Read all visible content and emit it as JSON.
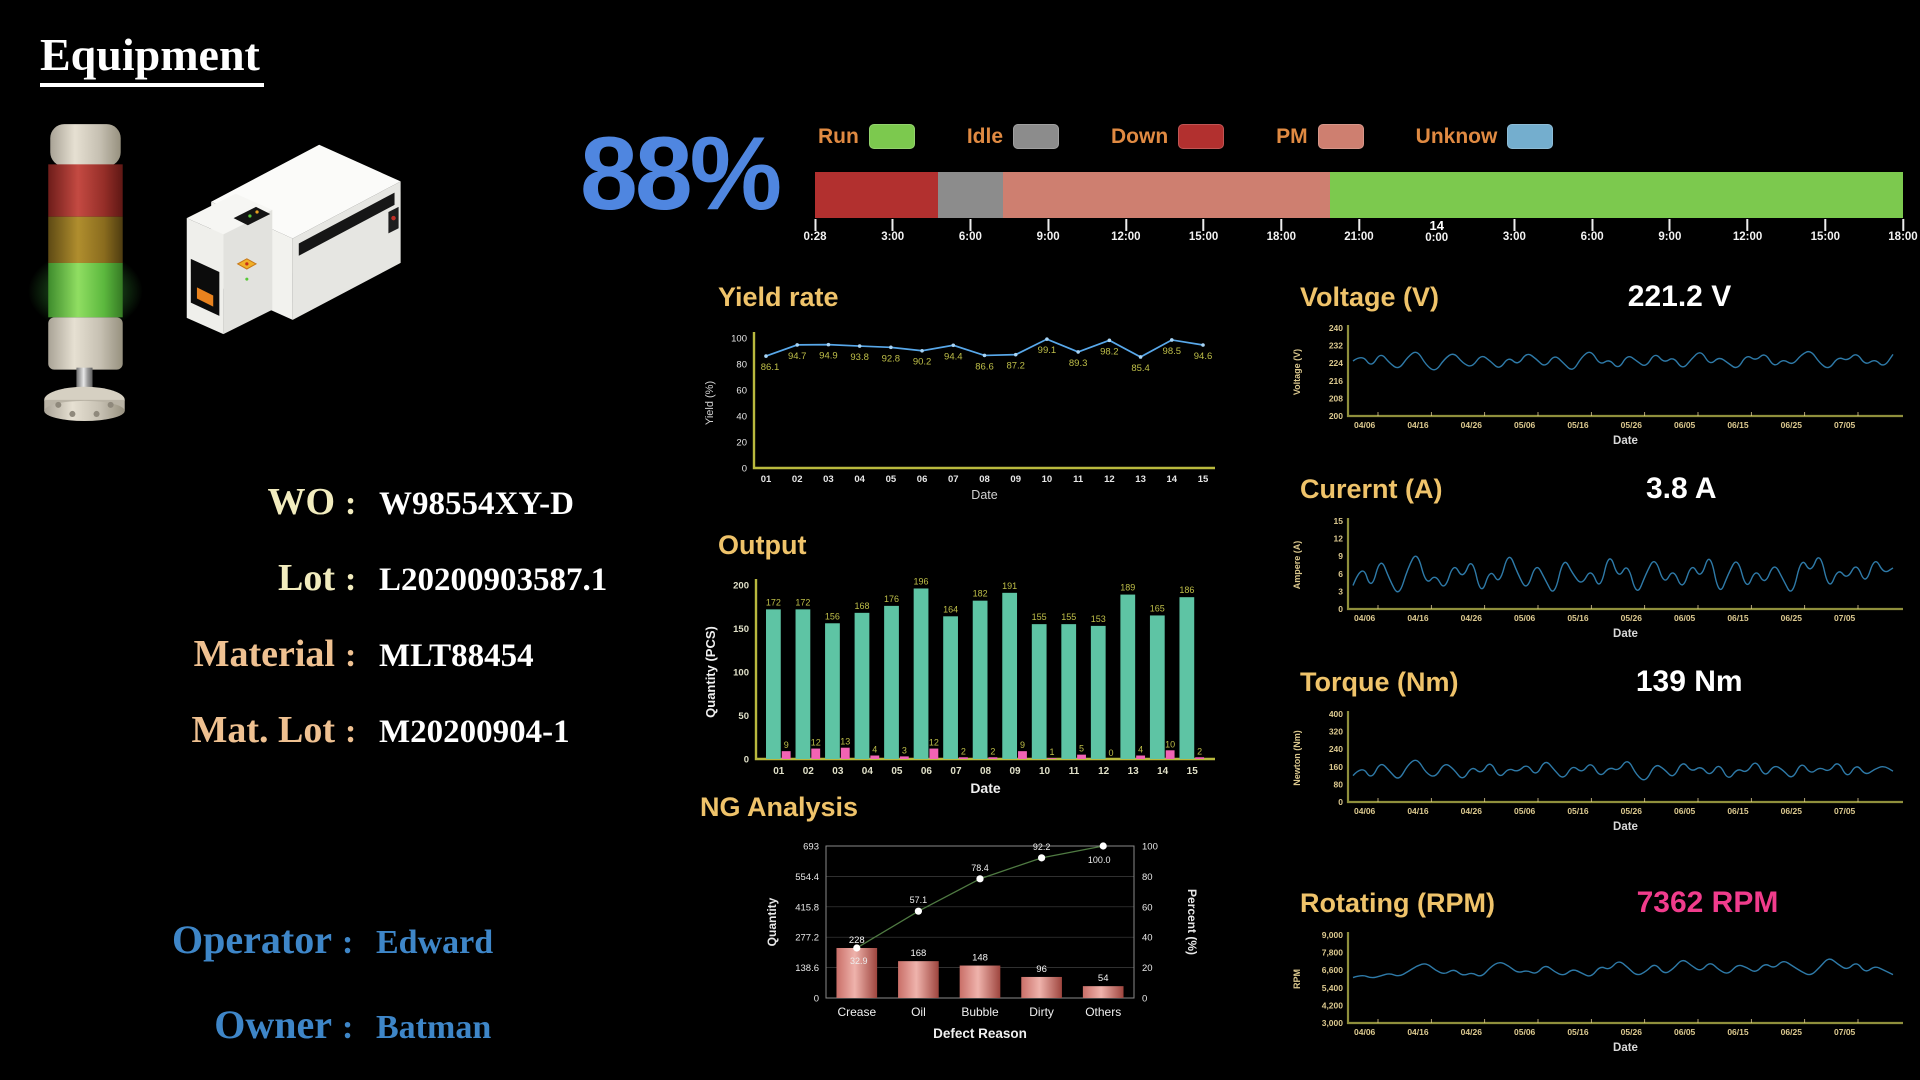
{
  "header": {
    "title": "Equipment"
  },
  "equipment": {
    "separator": ":",
    "status_light": "green",
    "info_rows": [
      {
        "label": "WO",
        "value": "W98554XY-D",
        "label_color": "#F2ECBE"
      },
      {
        "label": "Lot",
        "value": "L20200903587.1",
        "label_color": "#F2ECBE"
      },
      {
        "label": "Material",
        "value": "MLT88454",
        "label_color": "#EFC191"
      },
      {
        "label": "Mat. Lot",
        "value": "M20200904-1",
        "label_color": "#EFC191"
      }
    ],
    "people_rows": [
      {
        "label": "Operator",
        "value": "Edward",
        "label_color": "#3E86C8"
      },
      {
        "label": "Owner",
        "value": "Batman",
        "label_color": "#3E86C8"
      }
    ]
  },
  "oee": {
    "percent_label": "88%",
    "legend": [
      {
        "label": "Run",
        "color": "#7CC94E"
      },
      {
        "label": "Idle",
        "color": "#8C8C8C"
      },
      {
        "label": "Down",
        "color": "#B2302F"
      },
      {
        "label": "PM",
        "color": "#CE7F70"
      },
      {
        "label": "Unknow",
        "color": "#74AECE"
      }
    ],
    "timeline_segments": [
      {
        "status": "Down",
        "pct": 11.3
      },
      {
        "status": "Idle",
        "pct": 6.0
      },
      {
        "status": "PM",
        "pct": 30.0
      },
      {
        "status": "Run",
        "pct": 52.7
      }
    ],
    "time_ticks": [
      "0:28",
      "3:00",
      "6:00",
      "9:00",
      "12:00",
      "15:00",
      "18:00",
      "21:00",
      "0:00",
      "3:00",
      "6:00",
      "9:00",
      "12:00",
      "15:00",
      "18:00"
    ],
    "day_marker": {
      "label": "14",
      "tick_index": 8
    }
  },
  "theme": {
    "accent_blue": "#4F86E0",
    "gold_title": "#EFC36A",
    "legend_label_orange": "#E08A42",
    "axis_olive": "#B9B93E",
    "data_label_yellow": "#BFBF49",
    "line_blue": "#58A8EA",
    "mini_line_blue": "#2E7AA8",
    "bar_teal": "#5EC4A4",
    "bar_pink": "#F263B4",
    "rpm_pink": "#F03C8C"
  },
  "chart_data": [
    {
      "id": "yield",
      "type": "line",
      "title": "Yield rate",
      "xlabel": "Date",
      "ylabel": "Yield (%)",
      "ylim": [
        0,
        100
      ],
      "yticks": [
        0,
        20,
        40,
        60,
        80,
        100
      ],
      "categories": [
        "01",
        "02",
        "03",
        "04",
        "05",
        "06",
        "07",
        "08",
        "09",
        "10",
        "11",
        "12",
        "13",
        "14",
        "15"
      ],
      "values": [
        86.1,
        94.7,
        94.9,
        93.8,
        92.8,
        90.2,
        94.4,
        86.6,
        87.2,
        99.1,
        89.3,
        98.2,
        85.4,
        98.5,
        94.6
      ]
    },
    {
      "id": "output",
      "type": "bar",
      "title": "Output",
      "xlabel": "Date",
      "ylabel": "Quantity (PCS)",
      "ylim": [
        0,
        200
      ],
      "yticks": [
        0,
        50,
        100,
        150,
        200
      ],
      "categories": [
        "01",
        "02",
        "03",
        "04",
        "05",
        "06",
        "07",
        "08",
        "09",
        "10",
        "11",
        "12",
        "13",
        "14",
        "15"
      ],
      "series": [
        {
          "name": "Output",
          "color": "#5EC4A4",
          "values": [
            172,
            172,
            156,
            168,
            176,
            196,
            164,
            182,
            191,
            155,
            155,
            153,
            189,
            165,
            186
          ]
        },
        {
          "name": "NG",
          "color": "#F263B4",
          "values": [
            9,
            12,
            13,
            4,
            3,
            12,
            2,
            2,
            9,
            1,
            5,
            0,
            4,
            10,
            2
          ]
        }
      ]
    },
    {
      "id": "ng",
      "type": "pareto",
      "title": "NG Analysis",
      "xlabel": "Defect Reason",
      "ylabel_left": "Quantity",
      "ylabel_right": "Percent (%)",
      "categories": [
        "Crease",
        "Oil",
        "Bubble",
        "Dirty",
        "Others"
      ],
      "bar_values": [
        228,
        168,
        148,
        96,
        54
      ],
      "cum_percent": [
        32.9,
        57.1,
        78.4,
        92.2,
        100.0
      ],
      "ylim_left": [
        0,
        693
      ],
      "yticks_left": [
        0,
        138.6,
        277.2,
        415.8,
        554.4,
        693
      ],
      "ylim_right": [
        0,
        100
      ],
      "yticks_right": [
        0,
        20,
        40,
        60,
        80,
        100
      ]
    },
    {
      "id": "voltage",
      "type": "line",
      "title": "Voltage (V)",
      "current_value": "221.2 V",
      "value_color": "#FFFFFF",
      "xlabel": "Date",
      "ylabel": "Voltage (V)",
      "ylim": [
        200,
        240
      ],
      "yticks": [
        200,
        208,
        216,
        224,
        232,
        240
      ],
      "xticks": [
        "04/06",
        "04/16",
        "04/26",
        "05/06",
        "05/16",
        "05/26",
        "06/05",
        "06/15",
        "06/25",
        "07/05"
      ],
      "values": [
        225,
        228,
        222,
        229,
        224,
        221,
        227,
        230,
        223,
        220,
        226,
        229,
        224,
        222,
        228,
        225,
        221,
        227,
        223,
        229,
        226,
        222,
        228,
        224,
        220,
        227,
        230,
        223,
        226,
        221,
        228,
        225,
        222,
        229,
        224,
        227,
        221,
        226,
        230,
        223,
        227,
        224,
        221,
        228,
        225,
        229,
        222,
        226,
        223,
        228,
        230,
        224,
        221,
        227,
        225,
        229,
        223,
        226,
        222,
        228
      ]
    },
    {
      "id": "current",
      "type": "line",
      "title": "Curernt (A)",
      "current_value": "3.8 A",
      "value_color": "#FFFFFF",
      "xlabel": "Date",
      "ylabel": "Ampere (A)",
      "ylim": [
        0,
        15
      ],
      "yticks": [
        0,
        3,
        6,
        9,
        12,
        15
      ],
      "xticks": [
        "04/06",
        "04/16",
        "04/26",
        "05/06",
        "05/16",
        "05/26",
        "06/05",
        "06/15",
        "06/25",
        "07/05"
      ],
      "values": [
        4,
        8,
        3,
        9,
        5,
        2,
        7,
        10,
        4,
        6,
        3,
        8,
        5,
        9,
        2,
        7,
        4,
        10,
        6,
        3,
        8,
        5,
        2,
        9,
        6,
        4,
        7,
        3,
        10,
        5,
        8,
        2,
        6,
        9,
        4,
        7,
        3,
        8,
        5,
        10,
        2,
        6,
        9,
        3,
        7,
        4,
        8,
        5,
        2,
        9,
        6,
        10,
        3,
        7,
        5,
        8,
        4,
        9,
        6,
        7
      ]
    },
    {
      "id": "torque",
      "type": "line",
      "title": "Torque (Nm)",
      "current_value": "139 Nm",
      "value_color": "#FFFFFF",
      "xlabel": "Date",
      "ylabel": "Newton (Nm)",
      "ylim": [
        0,
        400
      ],
      "yticks": [
        0,
        80,
        160,
        240,
        320,
        400
      ],
      "xticks": [
        "04/06",
        "04/16",
        "04/26",
        "05/06",
        "05/16",
        "05/26",
        "06/05",
        "06/15",
        "06/25",
        "07/05"
      ],
      "values": [
        120,
        165,
        100,
        185,
        140,
        95,
        170,
        200,
        130,
        110,
        180,
        150,
        95,
        165,
        125,
        190,
        105,
        155,
        135,
        175,
        115,
        195,
        145,
        100,
        170,
        130,
        185,
        110,
        160,
        140,
        200,
        120,
        90,
        175,
        150,
        105,
        190,
        135,
        165,
        115,
        180,
        95,
        155,
        130,
        195,
        110,
        170,
        145,
        100,
        185,
        125,
        160,
        135,
        190,
        105,
        175,
        120,
        150,
        165,
        140
      ]
    },
    {
      "id": "rpm",
      "type": "line",
      "title": "Rotating (RPM)",
      "current_value": "7362 RPM",
      "value_color": "#F03C8C",
      "xlabel": "Date",
      "ylabel": "RPM",
      "ylim": [
        3000,
        9000
      ],
      "yticks": [
        3000,
        4200,
        5400,
        6600,
        7800,
        9000
      ],
      "ytick_labels": [
        "3,000",
        "4,200",
        "5,400",
        "6,600",
        "7,800",
        "9,000"
      ],
      "xticks": [
        "04/06",
        "04/16",
        "04/26",
        "05/06",
        "05/16",
        "05/26",
        "06/05",
        "06/15",
        "06/25",
        "07/05"
      ],
      "values": [
        6100,
        6300,
        6050,
        6200,
        6400,
        6150,
        6500,
        6900,
        7100,
        6600,
        6300,
        6700,
        6200,
        6450,
        6100,
        6800,
        7200,
        6900,
        6400,
        6600,
        6300,
        7000,
        6500,
        6200,
        6700,
        6400,
        6100,
        6900,
        6600,
        7300,
        6800,
        6200,
        6500,
        7100,
        6300,
        6700,
        7400,
        6900,
        6500,
        7200,
        6600,
        6300,
        7000,
        6800,
        6400,
        7100,
        6700,
        7300,
        6900,
        6500,
        6200,
        6800,
        7500,
        7000,
        6600,
        7200,
        6400,
        6900,
        6600,
        6300
      ]
    }
  ]
}
